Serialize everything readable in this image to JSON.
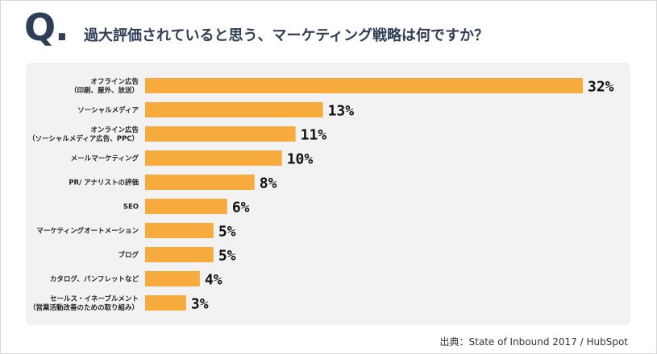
{
  "header": {
    "q_mark": "Q.",
    "question": "過大評価されていると思う、マーケティング戦略は何ですか？"
  },
  "source": "出典：State of Inbound 2017 / HubSpot",
  "colors": {
    "bar": "#f7ab3d",
    "panel": "#f2f2f2",
    "title": "#2f3e57",
    "text": "#222222"
  },
  "chart_data": {
    "type": "bar",
    "orientation": "horizontal",
    "title": "",
    "xlabel": "",
    "ylabel": "",
    "unit": "%",
    "categories": [
      [
        "オフライン広告",
        "（印刷、屋外、放送）"
      ],
      [
        "ソーシャルメディア"
      ],
      [
        "オンライン広告",
        "（ソーシャルメディア広告、PPC）"
      ],
      [
        "メールマーケティング"
      ],
      [
        "PR/ アナリストの評価"
      ],
      [
        "SEO"
      ],
      [
        "マーケティングオートメーション"
      ],
      [
        "ブログ"
      ],
      [
        "カタログ、パンフレットなど"
      ],
      [
        "セールス・イネーブルメント",
        "（営業活動改善のための取り組み）"
      ]
    ],
    "values": [
      32,
      13,
      11,
      10,
      8,
      6,
      5,
      5,
      4,
      3
    ],
    "value_labels": [
      "32%",
      "13%",
      "11%",
      "10%",
      "8%",
      "6%",
      "5%",
      "5%",
      "4%",
      "3%"
    ],
    "xlim": [
      0,
      32
    ],
    "grid": false,
    "legend": "none"
  }
}
